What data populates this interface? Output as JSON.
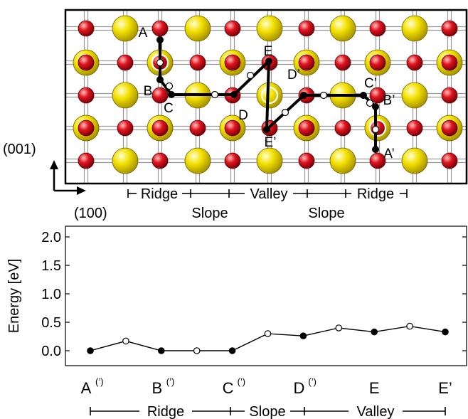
{
  "top_panel": {
    "point_labels": {
      "A": "A",
      "B": "B",
      "C": "C",
      "D": "D",
      "E": "E",
      "D_prime": "D’",
      "C_prime": "C’",
      "B_prime": "B’",
      "E_prime": "E’",
      "A_prime": "A’"
    },
    "axis_001": "(001)",
    "axis_100": "(100)",
    "regions_top": [
      "Ridge",
      "Valley",
      "Ridge"
    ],
    "regions_bottom": [
      "Slope",
      "Slope"
    ],
    "colors": {
      "ca_atom": "#f3e000",
      "o_atom": "#e0141e",
      "bond": "#9a9a9a",
      "path": "#000000"
    }
  },
  "chart_data": {
    "type": "line",
    "ylabel": "Energy [eV]",
    "ylim": [
      -0.2,
      2.0
    ],
    "yticks": [
      "2.0",
      "1.5",
      "1.0",
      "0.5",
      "0.0"
    ],
    "xtick_labels": [
      {
        "base": "A",
        "sup": "(’)"
      },
      {
        "base": "B",
        "sup": "(’)"
      },
      {
        "base": "C",
        "sup": "(’)"
      },
      {
        "base": "D",
        "sup": "(’)"
      },
      {
        "base": "E",
        "sup": ""
      },
      {
        "base": "E’",
        "sup": ""
      }
    ],
    "series": [
      {
        "x": [
          0,
          0.5,
          1,
          1.5,
          2,
          2.5,
          3,
          3.5,
          4,
          4.5,
          5
        ],
        "values": [
          0.0,
          0.17,
          0.0,
          0.0,
          0.0,
          0.3,
          0.26,
          0.4,
          0.33,
          0.43,
          0.33
        ],
        "marker_fill": [
          "black",
          "white",
          "black",
          "white",
          "black",
          "white",
          "black",
          "white",
          "black",
          "white",
          "black"
        ]
      }
    ],
    "regions": [
      "Ridge",
      "Slope",
      "Valley"
    ],
    "grid": false
  }
}
